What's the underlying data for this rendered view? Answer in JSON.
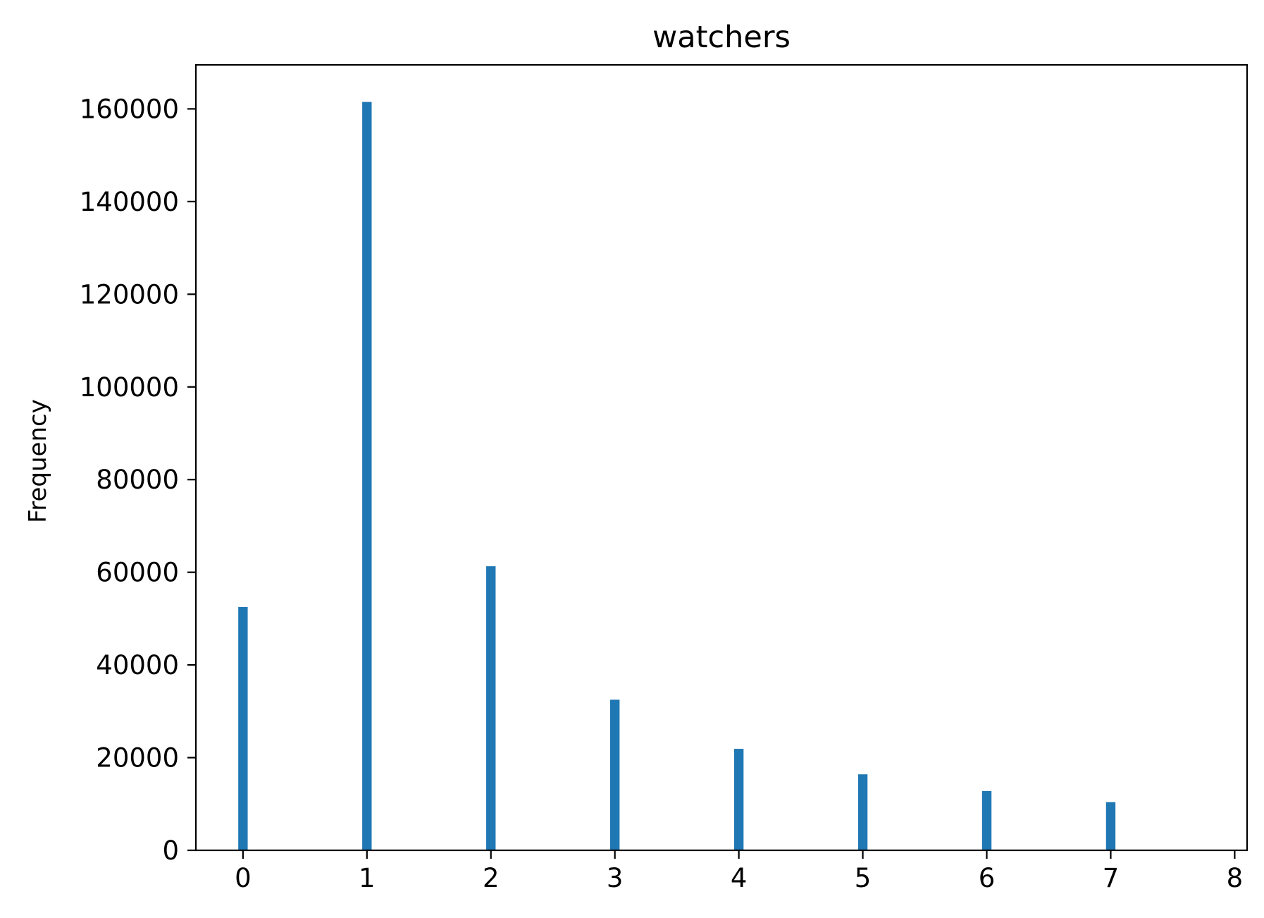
{
  "chart_data": {
    "type": "bar",
    "title": "watchers",
    "xlabel": "",
    "ylabel": "Frequency",
    "x": [
      0,
      1,
      2,
      3,
      4,
      5,
      6,
      7
    ],
    "values": [
      52500,
      161500,
      61300,
      32500,
      21900,
      16400,
      12800,
      10400
    ],
    "xlim": [
      -0.38,
      8.1
    ],
    "ylim": [
      0,
      169500
    ],
    "xticks": [
      0,
      1,
      2,
      3,
      4,
      5,
      6,
      7,
      8
    ],
    "xtick_labels": [
      "0",
      "1",
      "2",
      "3",
      "4",
      "5",
      "6",
      "7",
      "8"
    ],
    "yticks": [
      0,
      20000,
      40000,
      60000,
      80000,
      100000,
      120000,
      140000,
      160000
    ],
    "ytick_labels": [
      "0",
      "20000",
      "40000",
      "60000",
      "80000",
      "100000",
      "120000",
      "140000",
      "160000"
    ],
    "bar_width": 0.076,
    "grid": false,
    "colors": {
      "bar": "#1f77b4",
      "axis": "#000000"
    }
  }
}
